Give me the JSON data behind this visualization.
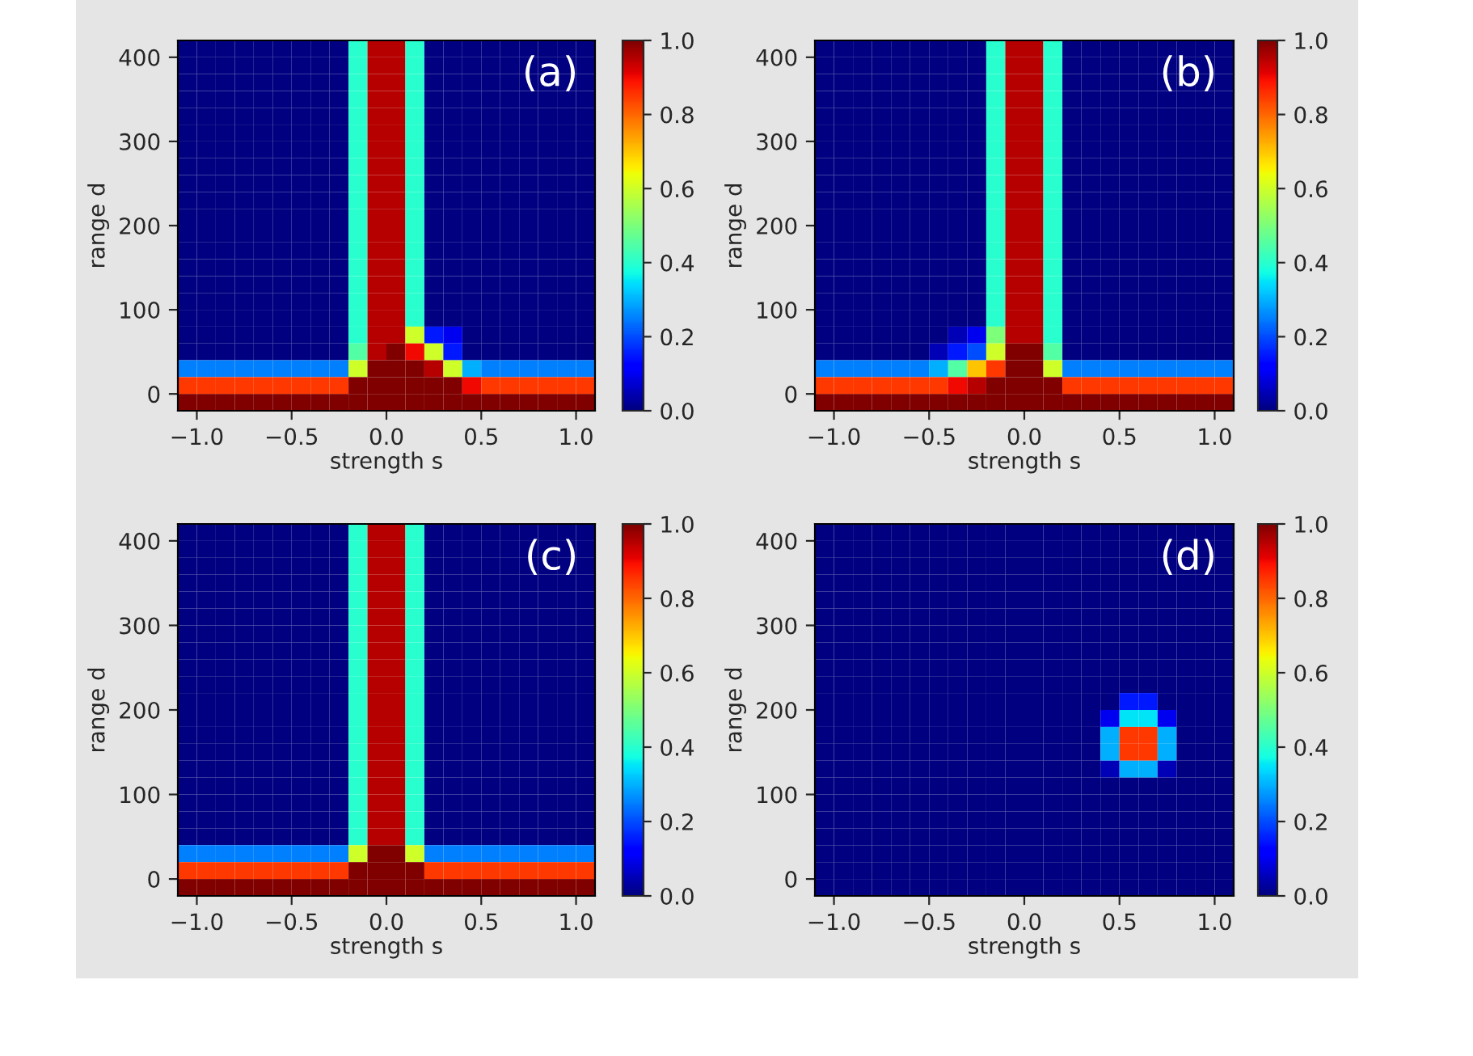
{
  "chart_data": [
    {
      "type": "heatmap",
      "xlabel": "strength s",
      "ylabel": "range d",
      "annotations": [
        "(a)"
      ],
      "x": [
        -1.05,
        -0.95,
        -0.85,
        -0.75,
        -0.65,
        -0.55,
        -0.45,
        -0.35,
        -0.25,
        -0.15,
        -0.05,
        0.05,
        0.15,
        0.25,
        0.35,
        0.45,
        0.55,
        0.65,
        0.75,
        0.85,
        0.95,
        1.05
      ],
      "y": [
        410,
        390,
        370,
        350,
        330,
        310,
        290,
        270,
        250,
        230,
        210,
        190,
        170,
        150,
        130,
        110,
        90,
        70,
        50,
        30,
        10,
        -10
      ],
      "xlim": [
        -1.1,
        1.1
      ],
      "xticks": [
        {
          "value": -1.0,
          "label": "−1.0"
        },
        {
          "value": -0.5,
          "label": "−0.5"
        },
        {
          "value": 0.0,
          "label": "0.0"
        },
        {
          "value": 0.5,
          "label": "0.5"
        },
        {
          "value": 1.0,
          "label": "1.0"
        }
      ],
      "ylim": [
        -20,
        420
      ],
      "yticks": [
        0,
        100,
        200,
        300,
        400
      ],
      "clim": [
        0.0,
        1.0
      ],
      "cticks": [
        {
          "value": 0.0,
          "label": "0.0"
        },
        {
          "value": 0.2,
          "label": "0.2"
        },
        {
          "value": 0.4,
          "label": "0.4"
        },
        {
          "value": 0.6,
          "label": "0.6"
        },
        {
          "value": 0.8,
          "label": "0.8"
        },
        {
          "value": 1.0,
          "label": "1.0"
        }
      ],
      "cells": [
        [
          0,
          0,
          0,
          0,
          0,
          0,
          0,
          0,
          0,
          0.4,
          0.95,
          0.95,
          0.4,
          0,
          0,
          0,
          0,
          0,
          0,
          0,
          0,
          0
        ],
        [
          0,
          0,
          0,
          0,
          0,
          0,
          0,
          0,
          0,
          0.4,
          0.95,
          0.95,
          0.4,
          0,
          0,
          0,
          0,
          0,
          0,
          0,
          0,
          0
        ],
        [
          0,
          0,
          0,
          0,
          0,
          0,
          0,
          0,
          0,
          0.4,
          0.95,
          0.95,
          0.4,
          0,
          0,
          0,
          0,
          0,
          0,
          0,
          0,
          0
        ],
        [
          0,
          0,
          0,
          0,
          0,
          0,
          0,
          0,
          0,
          0.4,
          0.95,
          0.95,
          0.4,
          0,
          0,
          0,
          0,
          0,
          0,
          0,
          0,
          0
        ],
        [
          0,
          0,
          0,
          0,
          0,
          0,
          0,
          0,
          0,
          0.4,
          0.95,
          0.95,
          0.4,
          0,
          0,
          0,
          0,
          0,
          0,
          0,
          0,
          0
        ],
        [
          0,
          0,
          0,
          0,
          0,
          0,
          0,
          0,
          0,
          0.4,
          0.95,
          0.95,
          0.4,
          0,
          0,
          0,
          0,
          0,
          0,
          0,
          0,
          0
        ],
        [
          0,
          0,
          0,
          0,
          0,
          0,
          0,
          0,
          0,
          0.4,
          0.95,
          0.95,
          0.4,
          0,
          0,
          0,
          0,
          0,
          0,
          0,
          0,
          0
        ],
        [
          0,
          0,
          0,
          0,
          0,
          0,
          0,
          0,
          0,
          0.4,
          0.95,
          0.95,
          0.4,
          0,
          0,
          0,
          0,
          0,
          0,
          0,
          0,
          0
        ],
        [
          0,
          0,
          0,
          0,
          0,
          0,
          0,
          0,
          0,
          0.4,
          0.95,
          0.95,
          0.4,
          0,
          0,
          0,
          0,
          0,
          0,
          0,
          0,
          0
        ],
        [
          0,
          0,
          0,
          0,
          0,
          0,
          0,
          0,
          0,
          0.4,
          0.95,
          0.95,
          0.4,
          0,
          0,
          0,
          0,
          0,
          0,
          0,
          0,
          0
        ],
        [
          0,
          0,
          0,
          0,
          0,
          0,
          0,
          0,
          0,
          0.4,
          0.95,
          0.95,
          0.4,
          0,
          0,
          0,
          0,
          0,
          0,
          0,
          0,
          0
        ],
        [
          0,
          0,
          0,
          0,
          0,
          0,
          0,
          0,
          0,
          0.4,
          0.95,
          0.95,
          0.4,
          0,
          0,
          0,
          0,
          0,
          0,
          0,
          0,
          0
        ],
        [
          0,
          0,
          0,
          0,
          0,
          0,
          0,
          0,
          0,
          0.4,
          0.95,
          0.95,
          0.4,
          0,
          0,
          0,
          0,
          0,
          0,
          0,
          0,
          0
        ],
        [
          0,
          0,
          0,
          0,
          0,
          0,
          0,
          0,
          0,
          0.4,
          0.95,
          0.95,
          0.4,
          0,
          0,
          0,
          0,
          0,
          0,
          0,
          0,
          0
        ],
        [
          0,
          0,
          0,
          0,
          0,
          0,
          0,
          0,
          0,
          0.4,
          0.95,
          0.95,
          0.4,
          0,
          0,
          0,
          0,
          0,
          0,
          0,
          0,
          0
        ],
        [
          0,
          0,
          0,
          0,
          0,
          0,
          0,
          0,
          0,
          0.4,
          0.95,
          0.95,
          0.4,
          0,
          0,
          0,
          0,
          0,
          0,
          0,
          0,
          0
        ],
        [
          0,
          0,
          0,
          0,
          0,
          0,
          0,
          0,
          0,
          0.4,
          0.95,
          0.95,
          0.4,
          0,
          0,
          0,
          0,
          0,
          0,
          0,
          0,
          0
        ],
        [
          0,
          0,
          0,
          0,
          0,
          0,
          0,
          0,
          0,
          0.4,
          0.95,
          0.95,
          0.6,
          0.15,
          0.1,
          0,
          0,
          0,
          0,
          0,
          0,
          0
        ],
        [
          0,
          0,
          0,
          0,
          0,
          0,
          0,
          0,
          0,
          0.45,
          0.95,
          1,
          0.9,
          0.6,
          0.15,
          0,
          0,
          0,
          0,
          0,
          0,
          0
        ],
        [
          0.25,
          0.25,
          0.25,
          0.25,
          0.25,
          0.25,
          0.25,
          0.25,
          0.25,
          0.6,
          1,
          1,
          1,
          0.95,
          0.6,
          0.3,
          0.25,
          0.25,
          0.25,
          0.25,
          0.25,
          0.25
        ],
        [
          0.85,
          0.85,
          0.85,
          0.85,
          0.85,
          0.85,
          0.85,
          0.85,
          0.85,
          1,
          1,
          1,
          1,
          1,
          1,
          0.9,
          0.85,
          0.85,
          0.85,
          0.85,
          0.85,
          0.85
        ],
        [
          1,
          1,
          1,
          1,
          1,
          1,
          1,
          1,
          1,
          1,
          1,
          1,
          1,
          1,
          1,
          1,
          1,
          1,
          1,
          1,
          1,
          1
        ]
      ]
    },
    {
      "type": "heatmap",
      "xlabel": "strength s",
      "ylabel": "range d",
      "annotations": [
        "(b)"
      ],
      "x": [
        -1.05,
        -0.95,
        -0.85,
        -0.75,
        -0.65,
        -0.55,
        -0.45,
        -0.35,
        -0.25,
        -0.15,
        -0.05,
        0.05,
        0.15,
        0.25,
        0.35,
        0.45,
        0.55,
        0.65,
        0.75,
        0.85,
        0.95,
        1.05
      ],
      "y": [
        410,
        390,
        370,
        350,
        330,
        310,
        290,
        270,
        250,
        230,
        210,
        190,
        170,
        150,
        130,
        110,
        90,
        70,
        50,
        30,
        10,
        -10
      ],
      "xlim": [
        -1.1,
        1.1
      ],
      "xticks": [
        {
          "value": -1.0,
          "label": "−1.0"
        },
        {
          "value": -0.5,
          "label": "−0.5"
        },
        {
          "value": 0.0,
          "label": "0.0"
        },
        {
          "value": 0.5,
          "label": "0.5"
        },
        {
          "value": 1.0,
          "label": "1.0"
        }
      ],
      "ylim": [
        -20,
        420
      ],
      "yticks": [
        0,
        100,
        200,
        300,
        400
      ],
      "clim": [
        0.0,
        1.0
      ],
      "cticks": [
        {
          "value": 0.0,
          "label": "0.0"
        },
        {
          "value": 0.2,
          "label": "0.2"
        },
        {
          "value": 0.4,
          "label": "0.4"
        },
        {
          "value": 0.6,
          "label": "0.6"
        },
        {
          "value": 0.8,
          "label": "0.8"
        },
        {
          "value": 1.0,
          "label": "1.0"
        }
      ],
      "cells": [
        [
          0,
          0,
          0,
          0,
          0,
          0,
          0,
          0,
          0,
          0.4,
          0.95,
          0.95,
          0.4,
          0,
          0,
          0,
          0,
          0,
          0,
          0,
          0,
          0
        ],
        [
          0,
          0,
          0,
          0,
          0,
          0,
          0,
          0,
          0,
          0.4,
          0.95,
          0.95,
          0.4,
          0,
          0,
          0,
          0,
          0,
          0,
          0,
          0,
          0
        ],
        [
          0,
          0,
          0,
          0,
          0,
          0,
          0,
          0,
          0,
          0.4,
          0.95,
          0.95,
          0.4,
          0,
          0,
          0,
          0,
          0,
          0,
          0,
          0,
          0
        ],
        [
          0,
          0,
          0,
          0,
          0,
          0,
          0,
          0,
          0,
          0.4,
          0.95,
          0.95,
          0.4,
          0,
          0,
          0,
          0,
          0,
          0,
          0,
          0,
          0
        ],
        [
          0,
          0,
          0,
          0,
          0,
          0,
          0,
          0,
          0,
          0.4,
          0.95,
          0.95,
          0.4,
          0,
          0,
          0,
          0,
          0,
          0,
          0,
          0,
          0
        ],
        [
          0,
          0,
          0,
          0,
          0,
          0,
          0,
          0,
          0,
          0.4,
          0.95,
          0.95,
          0.4,
          0,
          0,
          0,
          0,
          0,
          0,
          0,
          0,
          0
        ],
        [
          0,
          0,
          0,
          0,
          0,
          0,
          0,
          0,
          0,
          0.4,
          0.95,
          0.95,
          0.4,
          0,
          0,
          0,
          0,
          0,
          0,
          0,
          0,
          0
        ],
        [
          0,
          0,
          0,
          0,
          0,
          0,
          0,
          0,
          0,
          0.4,
          0.95,
          0.95,
          0.4,
          0,
          0,
          0,
          0,
          0,
          0,
          0,
          0,
          0
        ],
        [
          0,
          0,
          0,
          0,
          0,
          0,
          0,
          0,
          0,
          0.4,
          0.95,
          0.95,
          0.4,
          0,
          0,
          0,
          0,
          0,
          0,
          0,
          0,
          0
        ],
        [
          0,
          0,
          0,
          0,
          0,
          0,
          0,
          0,
          0,
          0.4,
          0.95,
          0.95,
          0.4,
          0,
          0,
          0,
          0,
          0,
          0,
          0,
          0,
          0
        ],
        [
          0,
          0,
          0,
          0,
          0,
          0,
          0,
          0,
          0,
          0.4,
          0.95,
          0.95,
          0.4,
          0,
          0,
          0,
          0,
          0,
          0,
          0,
          0,
          0
        ],
        [
          0,
          0,
          0,
          0,
          0,
          0,
          0,
          0,
          0,
          0.4,
          0.95,
          0.95,
          0.4,
          0,
          0,
          0,
          0,
          0,
          0,
          0,
          0,
          0
        ],
        [
          0,
          0,
          0,
          0,
          0,
          0,
          0,
          0,
          0,
          0.4,
          0.95,
          0.95,
          0.4,
          0,
          0,
          0,
          0,
          0,
          0,
          0,
          0,
          0
        ],
        [
          0,
          0,
          0,
          0,
          0,
          0,
          0,
          0,
          0,
          0.4,
          0.95,
          0.95,
          0.4,
          0,
          0,
          0,
          0,
          0,
          0,
          0,
          0,
          0
        ],
        [
          0,
          0,
          0,
          0,
          0,
          0,
          0,
          0,
          0,
          0.4,
          0.95,
          0.95,
          0.4,
          0,
          0,
          0,
          0,
          0,
          0,
          0,
          0,
          0
        ],
        [
          0,
          0,
          0,
          0,
          0,
          0,
          0,
          0,
          0,
          0.4,
          0.95,
          0.95,
          0.4,
          0,
          0,
          0,
          0,
          0,
          0,
          0,
          0,
          0
        ],
        [
          0,
          0,
          0,
          0,
          0,
          0,
          0,
          0,
          0,
          0.4,
          0.95,
          0.95,
          0.4,
          0,
          0,
          0,
          0,
          0,
          0,
          0,
          0,
          0
        ],
        [
          0,
          0,
          0,
          0,
          0,
          0,
          0,
          0.05,
          0.1,
          0.5,
          0.95,
          0.95,
          0.4,
          0,
          0,
          0,
          0,
          0,
          0,
          0,
          0,
          0
        ],
        [
          0,
          0,
          0,
          0,
          0,
          0,
          0.05,
          0.15,
          0.2,
          0.6,
          1,
          1,
          0.45,
          0,
          0,
          0,
          0,
          0,
          0,
          0,
          0,
          0
        ],
        [
          0.25,
          0.25,
          0.25,
          0.25,
          0.25,
          0.25,
          0.3,
          0.45,
          0.7,
          0.85,
          1,
          1,
          0.6,
          0.25,
          0.25,
          0.25,
          0.25,
          0.25,
          0.25,
          0.25,
          0.25,
          0.25
        ],
        [
          0.85,
          0.85,
          0.85,
          0.85,
          0.85,
          0.85,
          0.85,
          0.9,
          0.95,
          1,
          1,
          1,
          1,
          0.85,
          0.85,
          0.85,
          0.85,
          0.85,
          0.85,
          0.85,
          0.85,
          0.85
        ],
        [
          1,
          1,
          1,
          1,
          1,
          1,
          1,
          1,
          1,
          1,
          1,
          1,
          1,
          1,
          1,
          1,
          1,
          1,
          1,
          1,
          1,
          1
        ]
      ]
    },
    {
      "type": "heatmap",
      "xlabel": "strength s",
      "ylabel": "range d",
      "annotations": [
        "(c)"
      ],
      "x": [
        -1.05,
        -0.95,
        -0.85,
        -0.75,
        -0.65,
        -0.55,
        -0.45,
        -0.35,
        -0.25,
        -0.15,
        -0.05,
        0.05,
        0.15,
        0.25,
        0.35,
        0.45,
        0.55,
        0.65,
        0.75,
        0.85,
        0.95,
        1.05
      ],
      "y": [
        410,
        390,
        370,
        350,
        330,
        310,
        290,
        270,
        250,
        230,
        210,
        190,
        170,
        150,
        130,
        110,
        90,
        70,
        50,
        30,
        10,
        -10
      ],
      "xlim": [
        -1.1,
        1.1
      ],
      "xticks": [
        {
          "value": -1.0,
          "label": "−1.0"
        },
        {
          "value": -0.5,
          "label": "−0.5"
        },
        {
          "value": 0.0,
          "label": "0.0"
        },
        {
          "value": 0.5,
          "label": "0.5"
        },
        {
          "value": 1.0,
          "label": "1.0"
        }
      ],
      "ylim": [
        -20,
        420
      ],
      "yticks": [
        0,
        100,
        200,
        300,
        400
      ],
      "clim": [
        0.0,
        1.0
      ],
      "cticks": [
        {
          "value": 0.0,
          "label": "0.0"
        },
        {
          "value": 0.2,
          "label": "0.2"
        },
        {
          "value": 0.4,
          "label": "0.4"
        },
        {
          "value": 0.6,
          "label": "0.6"
        },
        {
          "value": 0.8,
          "label": "0.8"
        },
        {
          "value": 1.0,
          "label": "1.0"
        }
      ],
      "cells": [
        [
          0,
          0,
          0,
          0,
          0,
          0,
          0,
          0,
          0,
          0.4,
          0.95,
          0.95,
          0.4,
          0,
          0,
          0,
          0,
          0,
          0,
          0,
          0,
          0
        ],
        [
          0,
          0,
          0,
          0,
          0,
          0,
          0,
          0,
          0,
          0.4,
          0.95,
          0.95,
          0.4,
          0,
          0,
          0,
          0,
          0,
          0,
          0,
          0,
          0
        ],
        [
          0,
          0,
          0,
          0,
          0,
          0,
          0,
          0,
          0,
          0.4,
          0.95,
          0.95,
          0.4,
          0,
          0,
          0,
          0,
          0,
          0,
          0,
          0,
          0
        ],
        [
          0,
          0,
          0,
          0,
          0,
          0,
          0,
          0,
          0,
          0.4,
          0.95,
          0.95,
          0.4,
          0,
          0,
          0,
          0,
          0,
          0,
          0,
          0,
          0
        ],
        [
          0,
          0,
          0,
          0,
          0,
          0,
          0,
          0,
          0,
          0.4,
          0.95,
          0.95,
          0.4,
          0,
          0,
          0,
          0,
          0,
          0,
          0,
          0,
          0
        ],
        [
          0,
          0,
          0,
          0,
          0,
          0,
          0,
          0,
          0,
          0.4,
          0.95,
          0.95,
          0.4,
          0,
          0,
          0,
          0,
          0,
          0,
          0,
          0,
          0
        ],
        [
          0,
          0,
          0,
          0,
          0,
          0,
          0,
          0,
          0,
          0.4,
          0.95,
          0.95,
          0.4,
          0,
          0,
          0,
          0,
          0,
          0,
          0,
          0,
          0
        ],
        [
          0,
          0,
          0,
          0,
          0,
          0,
          0,
          0,
          0,
          0.4,
          0.95,
          0.95,
          0.4,
          0,
          0,
          0,
          0,
          0,
          0,
          0,
          0,
          0
        ],
        [
          0,
          0,
          0,
          0,
          0,
          0,
          0,
          0,
          0,
          0.4,
          0.95,
          0.95,
          0.4,
          0,
          0,
          0,
          0,
          0,
          0,
          0,
          0,
          0
        ],
        [
          0,
          0,
          0,
          0,
          0,
          0,
          0,
          0,
          0,
          0.4,
          0.95,
          0.95,
          0.4,
          0,
          0,
          0,
          0,
          0,
          0,
          0,
          0,
          0
        ],
        [
          0,
          0,
          0,
          0,
          0,
          0,
          0,
          0,
          0,
          0.4,
          0.95,
          0.95,
          0.4,
          0,
          0,
          0,
          0,
          0,
          0,
          0,
          0,
          0
        ],
        [
          0,
          0,
          0,
          0,
          0,
          0,
          0,
          0,
          0,
          0.4,
          0.95,
          0.95,
          0.4,
          0,
          0,
          0,
          0,
          0,
          0,
          0,
          0,
          0
        ],
        [
          0,
          0,
          0,
          0,
          0,
          0,
          0,
          0,
          0,
          0.4,
          0.95,
          0.95,
          0.4,
          0,
          0,
          0,
          0,
          0,
          0,
          0,
          0,
          0
        ],
        [
          0,
          0,
          0,
          0,
          0,
          0,
          0,
          0,
          0,
          0.4,
          0.95,
          0.95,
          0.4,
          0,
          0,
          0,
          0,
          0,
          0,
          0,
          0,
          0
        ],
        [
          0,
          0,
          0,
          0,
          0,
          0,
          0,
          0,
          0,
          0.4,
          0.95,
          0.95,
          0.4,
          0,
          0,
          0,
          0,
          0,
          0,
          0,
          0,
          0
        ],
        [
          0,
          0,
          0,
          0,
          0,
          0,
          0,
          0,
          0,
          0.4,
          0.95,
          0.95,
          0.4,
          0,
          0,
          0,
          0,
          0,
          0,
          0,
          0,
          0
        ],
        [
          0,
          0,
          0,
          0,
          0,
          0,
          0,
          0,
          0,
          0.4,
          0.95,
          0.95,
          0.4,
          0,
          0,
          0,
          0,
          0,
          0,
          0,
          0,
          0
        ],
        [
          0,
          0,
          0,
          0,
          0,
          0,
          0,
          0,
          0,
          0.4,
          0.95,
          0.95,
          0.4,
          0,
          0,
          0,
          0,
          0,
          0,
          0,
          0,
          0
        ],
        [
          0,
          0,
          0,
          0,
          0,
          0,
          0,
          0,
          0,
          0.4,
          0.95,
          0.95,
          0.4,
          0,
          0,
          0,
          0,
          0,
          0,
          0,
          0,
          0
        ],
        [
          0.25,
          0.25,
          0.25,
          0.25,
          0.25,
          0.25,
          0.25,
          0.25,
          0.25,
          0.6,
          1,
          1,
          0.6,
          0.25,
          0.25,
          0.25,
          0.25,
          0.25,
          0.25,
          0.25,
          0.25,
          0.25
        ],
        [
          0.85,
          0.85,
          0.85,
          0.85,
          0.85,
          0.85,
          0.85,
          0.85,
          0.85,
          1,
          1,
          1,
          1,
          0.85,
          0.85,
          0.85,
          0.85,
          0.85,
          0.85,
          0.85,
          0.85,
          0.85
        ],
        [
          1,
          1,
          1,
          1,
          1,
          1,
          1,
          1,
          1,
          1,
          1,
          1,
          1,
          1,
          1,
          1,
          1,
          1,
          1,
          1,
          1,
          1
        ]
      ]
    },
    {
      "type": "heatmap",
      "xlabel": "strength s",
      "ylabel": "range d",
      "annotations": [
        "(d)"
      ],
      "x": [
        -1.05,
        -0.95,
        -0.85,
        -0.75,
        -0.65,
        -0.55,
        -0.45,
        -0.35,
        -0.25,
        -0.15,
        -0.05,
        0.05,
        0.15,
        0.25,
        0.35,
        0.45,
        0.55,
        0.65,
        0.75,
        0.85,
        0.95,
        1.05
      ],
      "y": [
        410,
        390,
        370,
        350,
        330,
        310,
        290,
        270,
        250,
        230,
        210,
        190,
        170,
        150,
        130,
        110,
        90,
        70,
        50,
        30,
        10,
        -10
      ],
      "xlim": [
        -1.1,
        1.1
      ],
      "xticks": [
        {
          "value": -1.0,
          "label": "−1.0"
        },
        {
          "value": -0.5,
          "label": "−0.5"
        },
        {
          "value": 0.0,
          "label": "0.0"
        },
        {
          "value": 0.5,
          "label": "0.5"
        },
        {
          "value": 1.0,
          "label": "1.0"
        }
      ],
      "ylim": [
        -20,
        420
      ],
      "yticks": [
        0,
        100,
        200,
        300,
        400
      ],
      "clim": [
        0.0,
        1.0
      ],
      "cticks": [
        {
          "value": 0.0,
          "label": "0.0"
        },
        {
          "value": 0.2,
          "label": "0.2"
        },
        {
          "value": 0.4,
          "label": "0.4"
        },
        {
          "value": 0.6,
          "label": "0.6"
        },
        {
          "value": 0.8,
          "label": "0.8"
        },
        {
          "value": 1.0,
          "label": "1.0"
        }
      ],
      "cells": [
        [
          0,
          0,
          0,
          0,
          0,
          0,
          0,
          0,
          0,
          0,
          0,
          0,
          0,
          0,
          0,
          0,
          0,
          0,
          0,
          0,
          0,
          0
        ],
        [
          0,
          0,
          0,
          0,
          0,
          0,
          0,
          0,
          0,
          0,
          0,
          0,
          0,
          0,
          0,
          0,
          0,
          0,
          0,
          0,
          0,
          0
        ],
        [
          0,
          0,
          0,
          0,
          0,
          0,
          0,
          0,
          0,
          0,
          0,
          0,
          0,
          0,
          0,
          0,
          0,
          0,
          0,
          0,
          0,
          0
        ],
        [
          0,
          0,
          0,
          0,
          0,
          0,
          0,
          0,
          0,
          0,
          0,
          0,
          0,
          0,
          0,
          0,
          0,
          0,
          0,
          0,
          0,
          0
        ],
        [
          0,
          0,
          0,
          0,
          0,
          0,
          0,
          0,
          0,
          0,
          0,
          0,
          0,
          0,
          0,
          0,
          0,
          0,
          0,
          0,
          0,
          0
        ],
        [
          0,
          0,
          0,
          0,
          0,
          0,
          0,
          0,
          0,
          0,
          0,
          0,
          0,
          0,
          0,
          0,
          0,
          0,
          0,
          0,
          0,
          0
        ],
        [
          0,
          0,
          0,
          0,
          0,
          0,
          0,
          0,
          0,
          0,
          0,
          0,
          0,
          0,
          0,
          0,
          0,
          0,
          0,
          0,
          0,
          0
        ],
        [
          0,
          0,
          0,
          0,
          0,
          0,
          0,
          0,
          0,
          0,
          0,
          0,
          0,
          0,
          0,
          0,
          0,
          0,
          0,
          0,
          0,
          0
        ],
        [
          0,
          0,
          0,
          0,
          0,
          0,
          0,
          0,
          0,
          0,
          0,
          0,
          0,
          0,
          0,
          0,
          0,
          0,
          0,
          0,
          0,
          0
        ],
        [
          0,
          0,
          0,
          0,
          0,
          0,
          0,
          0,
          0,
          0,
          0,
          0,
          0,
          0,
          0,
          0,
          0,
          0,
          0,
          0,
          0,
          0
        ],
        [
          0,
          0,
          0,
          0,
          0,
          0,
          0,
          0,
          0,
          0,
          0,
          0,
          0,
          0,
          0,
          0,
          0.15,
          0.15,
          0,
          0,
          0,
          0
        ],
        [
          0,
          0,
          0,
          0,
          0,
          0,
          0,
          0,
          0,
          0,
          0,
          0,
          0,
          0,
          0,
          0.1,
          0.35,
          0.35,
          0.1,
          0,
          0,
          0
        ],
        [
          0,
          0,
          0,
          0,
          0,
          0,
          0,
          0,
          0,
          0,
          0,
          0,
          0,
          0,
          0,
          0.3,
          0.85,
          0.85,
          0.3,
          0,
          0,
          0
        ],
        [
          0,
          0,
          0,
          0,
          0,
          0,
          0,
          0,
          0,
          0,
          0,
          0,
          0,
          0,
          0,
          0.3,
          0.85,
          0.85,
          0.3,
          0,
          0,
          0
        ],
        [
          0,
          0,
          0,
          0,
          0,
          0,
          0,
          0,
          0,
          0,
          0,
          0,
          0,
          0,
          0,
          0.05,
          0.3,
          0.3,
          0.05,
          0,
          0,
          0
        ],
        [
          0,
          0,
          0,
          0,
          0,
          0,
          0,
          0,
          0,
          0,
          0,
          0,
          0,
          0,
          0,
          0,
          0,
          0,
          0,
          0,
          0,
          0
        ],
        [
          0,
          0,
          0,
          0,
          0,
          0,
          0,
          0,
          0,
          0,
          0,
          0,
          0,
          0,
          0,
          0,
          0,
          0,
          0,
          0,
          0,
          0
        ],
        [
          0,
          0,
          0,
          0,
          0,
          0,
          0,
          0,
          0,
          0,
          0,
          0,
          0,
          0,
          0,
          0,
          0,
          0,
          0,
          0,
          0,
          0
        ],
        [
          0,
          0,
          0,
          0,
          0,
          0,
          0,
          0,
          0,
          0,
          0,
          0,
          0,
          0,
          0,
          0,
          0,
          0,
          0,
          0,
          0,
          0
        ],
        [
          0,
          0,
          0,
          0,
          0,
          0,
          0,
          0,
          0,
          0,
          0,
          0,
          0,
          0,
          0,
          0,
          0,
          0,
          0,
          0,
          0,
          0
        ],
        [
          0,
          0,
          0,
          0,
          0,
          0,
          0,
          0,
          0,
          0,
          0,
          0,
          0,
          0,
          0,
          0,
          0,
          0,
          0,
          0,
          0,
          0
        ],
        [
          0,
          0,
          0,
          0,
          0,
          0,
          0,
          0,
          0,
          0,
          0,
          0,
          0,
          0,
          0,
          0,
          0,
          0,
          0,
          0,
          0,
          0
        ]
      ]
    }
  ]
}
